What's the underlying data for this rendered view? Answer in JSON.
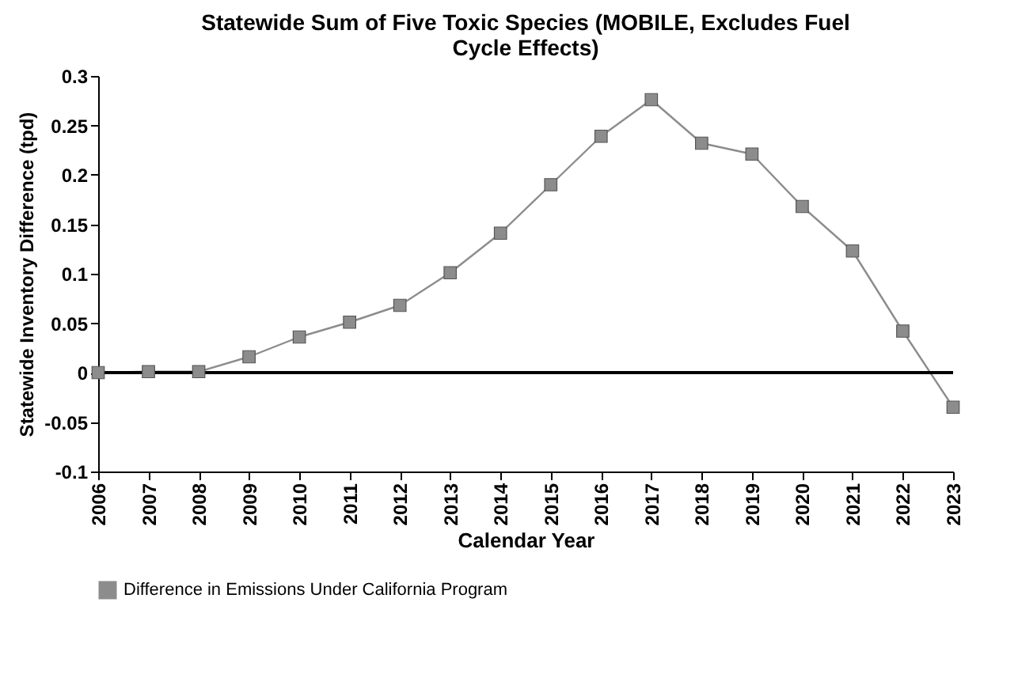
{
  "chart_data": {
    "type": "line",
    "title": "Statewide Sum of Five Toxic Species (MOBILE, Excludes Fuel Cycle Effects)",
    "xlabel": "Calendar Year",
    "ylabel": "Statewide Inventory Difference (tpd)",
    "categories": [
      "2006",
      "2007",
      "2008",
      "2009",
      "2010",
      "2011",
      "2012",
      "2013",
      "2014",
      "2015",
      "2016",
      "2017",
      "2018",
      "2019",
      "2020",
      "2021",
      "2022",
      "2023"
    ],
    "series": [
      {
        "name": "Difference in Emissions Under California Program",
        "color": "#8c8c8c",
        "values": [
          0,
          0.001,
          0.001,
          0.016,
          0.036,
          0.051,
          0.068,
          0.101,
          0.141,
          0.19,
          0.239,
          0.276,
          0.232,
          0.221,
          0.168,
          0.123,
          0.042,
          -0.035
        ]
      }
    ],
    "ylim": [
      -0.1,
      0.3
    ],
    "yticks": [
      -0.1,
      -0.05,
      0,
      0.05,
      0.1,
      0.15,
      0.2,
      0.25,
      0.3
    ],
    "ref_lines": [
      {
        "axis": "y",
        "value": 0,
        "color": "#000000"
      }
    ],
    "marker": "square",
    "line_style": "solid",
    "grid": false,
    "legend": "bottom"
  }
}
